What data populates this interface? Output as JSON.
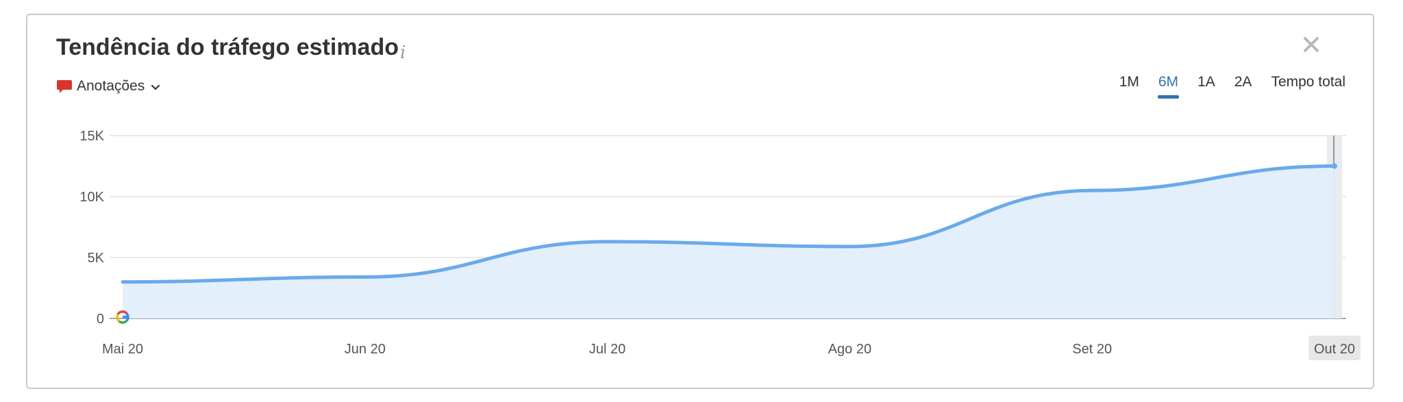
{
  "widget": {
    "title": "Tendência do tráfego estimado",
    "info_icon": "i",
    "annotations_label": "Anotações"
  },
  "periods": [
    {
      "label": "1M",
      "active": false
    },
    {
      "label": "6M",
      "active": true
    },
    {
      "label": "1A",
      "active": false
    },
    {
      "label": "2A",
      "active": false
    },
    {
      "label": "Tempo total",
      "active": false
    }
  ],
  "colors": {
    "line": "#6aaaeb",
    "area": "#e1eefb",
    "accent": "#3572b5",
    "annotation": "#d9352b"
  },
  "chart_data": {
    "type": "area",
    "x": [
      "Mai 20",
      "Jun 20",
      "Jul 20",
      "Ago 20",
      "Set 20",
      "Out 20"
    ],
    "y": [
      3000,
      3400,
      6300,
      5900,
      10500,
      12500
    ],
    "ylim": [
      0,
      15000
    ],
    "yticks": [
      0,
      5000,
      10000,
      15000
    ],
    "ytick_labels": [
      "0",
      "5K",
      "10K",
      "15K"
    ],
    "highlighted_x": "Out 20",
    "annotation_markers": [
      {
        "x": "Mai 20",
        "icon": "google-icon"
      }
    ],
    "grid": true
  }
}
